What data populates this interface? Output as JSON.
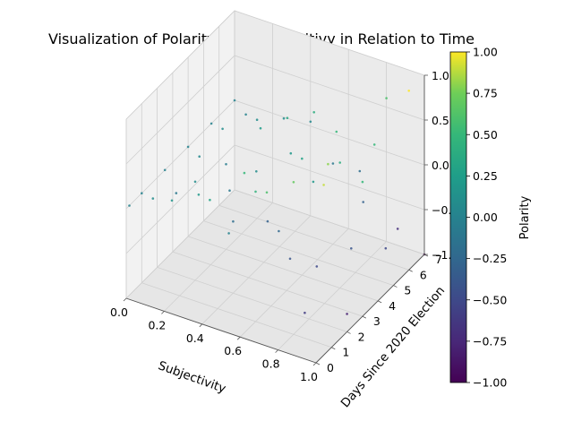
{
  "chart_data": {
    "type": "scatter",
    "projection": "3d",
    "title": "Visualization of Polarity and Subjectitivy in Relation to Time",
    "xlabel": "Subjectivity",
    "ylabel": "Days Since 2020 Election",
    "zlabel": "",
    "xlim": [
      0.0,
      1.0
    ],
    "ylim": [
      0,
      7
    ],
    "zlim": [
      -1.0,
      1.0
    ],
    "x_ticks": [
      "0.0",
      "0.2",
      "0.4",
      "0.6",
      "0.8",
      "1.0"
    ],
    "y_ticks": [
      "0",
      "1",
      "2",
      "3",
      "4",
      "5",
      "6",
      "7"
    ],
    "z_ticks": [
      "−1.0",
      "−0.5",
      "0.0",
      "0.5",
      "1.0"
    ],
    "color_by": "Polarity",
    "colormap": "viridis",
    "grid": true,
    "colorbar": {
      "label": "Polarity",
      "ticks": [
        "1.00",
        "0.75",
        "0.50",
        "0.25",
        "0.00",
        "−0.25",
        "−0.50",
        "−0.75",
        "−1.00"
      ],
      "range": [
        -1.0,
        1.0
      ]
    },
    "series": [
      {
        "description": "dense cloud of tweet sentiment points",
        "points": [
          [
            0.0,
            0.2,
            0.0
          ],
          [
            0.0,
            1.0,
            0.0
          ],
          [
            0.0,
            2.5,
            0.0
          ],
          [
            0.0,
            4.0,
            0.0
          ],
          [
            0.0,
            5.5,
            0.0
          ],
          [
            0.0,
            7.0,
            0.0
          ],
          [
            0.1,
            0.5,
            0.1
          ],
          [
            0.1,
            2.0,
            -0.1
          ],
          [
            0.1,
            3.5,
            0.05
          ],
          [
            0.1,
            5.0,
            0.1
          ],
          [
            0.1,
            6.5,
            0.0
          ],
          [
            0.2,
            0.5,
            0.15
          ],
          [
            0.2,
            2.0,
            0.1
          ],
          [
            0.2,
            4.0,
            -0.05
          ],
          [
            0.2,
            6.0,
            0.1
          ],
          [
            0.3,
            1.0,
            0.2
          ],
          [
            0.3,
            3.0,
            -0.1
          ],
          [
            0.3,
            5.0,
            0.25
          ],
          [
            0.3,
            6.5,
            0.1
          ],
          [
            0.4,
            0.5,
            0.3
          ],
          [
            0.4,
            2.0,
            -0.2
          ],
          [
            0.4,
            3.5,
            0.1
          ],
          [
            0.4,
            5.5,
            0.35
          ],
          [
            0.4,
            7.0,
            0.05
          ],
          [
            0.5,
            0.5,
            0.0
          ],
          [
            0.5,
            1.5,
            0.5
          ],
          [
            0.5,
            3.0,
            -0.3
          ],
          [
            0.5,
            4.5,
            0.2
          ],
          [
            0.5,
            6.0,
            0.4
          ],
          [
            0.6,
            1.0,
            0.45
          ],
          [
            0.6,
            2.5,
            -0.25
          ],
          [
            0.6,
            4.0,
            0.3
          ],
          [
            0.6,
            6.0,
            -0.1
          ],
          [
            0.7,
            0.5,
            0.6
          ],
          [
            0.7,
            2.0,
            -0.4
          ],
          [
            0.7,
            3.5,
            0.2
          ],
          [
            0.7,
            5.0,
            0.5
          ],
          [
            0.7,
            6.5,
            -0.2
          ],
          [
            0.8,
            1.0,
            0.7
          ],
          [
            0.8,
            2.5,
            -0.5
          ],
          [
            0.8,
            4.0,
            0.4
          ],
          [
            0.8,
            5.5,
            -0.3
          ],
          [
            0.8,
            7.0,
            0.6
          ],
          [
            0.9,
            0.5,
            -0.6
          ],
          [
            0.9,
            2.0,
            0.8
          ],
          [
            0.9,
            3.5,
            -0.4
          ],
          [
            0.9,
            5.0,
            0.5
          ],
          [
            0.9,
            6.5,
            -0.7
          ],
          [
            1.0,
            0.5,
            0.9
          ],
          [
            1.0,
            2.0,
            -0.8
          ],
          [
            1.0,
            3.0,
            0.5
          ],
          [
            1.0,
            4.5,
            -0.5
          ],
          [
            1.0,
            6.0,
            1.0
          ],
          [
            1.0,
            7.0,
            -1.0
          ]
        ]
      }
    ]
  }
}
